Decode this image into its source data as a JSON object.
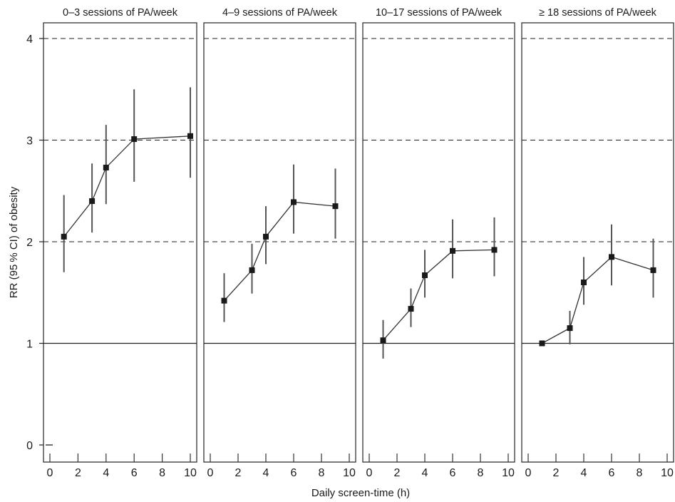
{
  "chart_data": {
    "type": "line",
    "xlabel": "Daily screen-time (h)",
    "ylabel": "RR (95 % CI) of obesity",
    "x_ticks": [
      0,
      2,
      4,
      6,
      8,
      10
    ],
    "y_ticks": [
      0,
      1,
      2,
      3,
      4
    ],
    "xlim": [
      -0.5,
      10.5
    ],
    "ylim": [
      -0.1,
      4.2
    ],
    "reference_lines": {
      "solid": [
        1
      ],
      "dashed": [
        2,
        3,
        4
      ]
    },
    "grid": false,
    "panels": [
      {
        "title": "0–3 sessions of PA/week",
        "x": [
          1,
          3,
          4,
          6,
          10
        ],
        "y": [
          2.05,
          2.4,
          2.73,
          3.01,
          3.04
        ],
        "ci_low": [
          1.7,
          2.09,
          2.37,
          2.59,
          2.63
        ],
        "ci_high": [
          2.46,
          2.77,
          3.15,
          3.5,
          3.52
        ],
        "extra_points": [
          {
            "x": 0,
            "y": 0
          }
        ]
      },
      {
        "title": "4–9 sessions of PA/week",
        "x": [
          1,
          3,
          4,
          6,
          9
        ],
        "y": [
          1.42,
          1.72,
          2.05,
          2.39,
          2.35
        ],
        "ci_low": [
          1.21,
          1.49,
          1.78,
          2.08,
          2.03
        ],
        "ci_high": [
          1.69,
          1.98,
          2.35,
          2.76,
          2.72
        ]
      },
      {
        "title": "10–17 sessions of PA/week",
        "x": [
          1,
          3,
          4,
          6,
          9
        ],
        "y": [
          1.03,
          1.34,
          1.67,
          1.91,
          1.92
        ],
        "ci_low": [
          0.85,
          1.16,
          1.45,
          1.64,
          1.66
        ],
        "ci_high": [
          1.23,
          1.54,
          1.92,
          2.22,
          2.24
        ]
      },
      {
        "title": "≥ 18 sessions of PA/week",
        "x": [
          1,
          3,
          4,
          6,
          9
        ],
        "y": [
          1.0,
          1.15,
          1.6,
          1.85,
          1.72
        ],
        "ci_low": [
          1.0,
          0.99,
          1.38,
          1.57,
          1.45
        ],
        "ci_high": [
          1.0,
          1.32,
          1.85,
          2.17,
          2.03
        ]
      }
    ]
  }
}
